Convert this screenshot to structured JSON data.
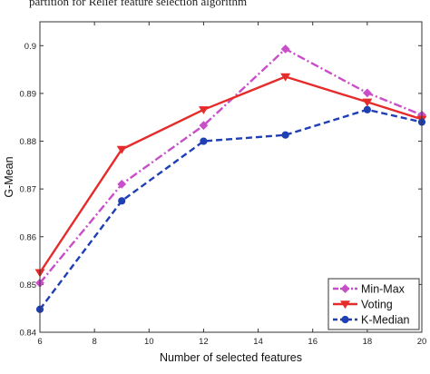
{
  "caption": "partition for Relief feature selection algorithm",
  "chart_data": {
    "type": "line",
    "title": "",
    "xlabel": "Number of selected features",
    "ylabel": "G-Mean",
    "xlim": [
      6,
      20
    ],
    "ylim": [
      0.84,
      0.905
    ],
    "xticks": [
      6,
      8,
      10,
      12,
      14,
      16,
      18,
      20
    ],
    "yticks": [
      0.84,
      0.85,
      0.86,
      0.87,
      0.88,
      0.89,
      0.9
    ],
    "grid": false,
    "legend_position": "bottom-right",
    "series": [
      {
        "name": "Min-Max",
        "color": "#c94fc9",
        "marker": "diamond",
        "dash": "dash-dot",
        "x": [
          6,
          9,
          12,
          15,
          18,
          20
        ],
        "y": [
          0.8503,
          0.871,
          0.8833,
          0.8993,
          0.8901,
          0.8855
        ]
      },
      {
        "name": "Voting",
        "color": "#e62b2b",
        "marker": "triangle-down",
        "dash": "solid",
        "x": [
          6,
          9,
          12,
          15,
          18,
          20
        ],
        "y": [
          0.8525,
          0.8783,
          0.8866,
          0.8935,
          0.8882,
          0.8846
        ]
      },
      {
        "name": "K-Median",
        "color": "#1f3fb5",
        "marker": "circle",
        "dash": "dashed",
        "x": [
          6,
          9,
          12,
          15,
          18,
          20
        ],
        "y": [
          0.8448,
          0.8675,
          0.88,
          0.8813,
          0.8866,
          0.884
        ]
      }
    ]
  }
}
